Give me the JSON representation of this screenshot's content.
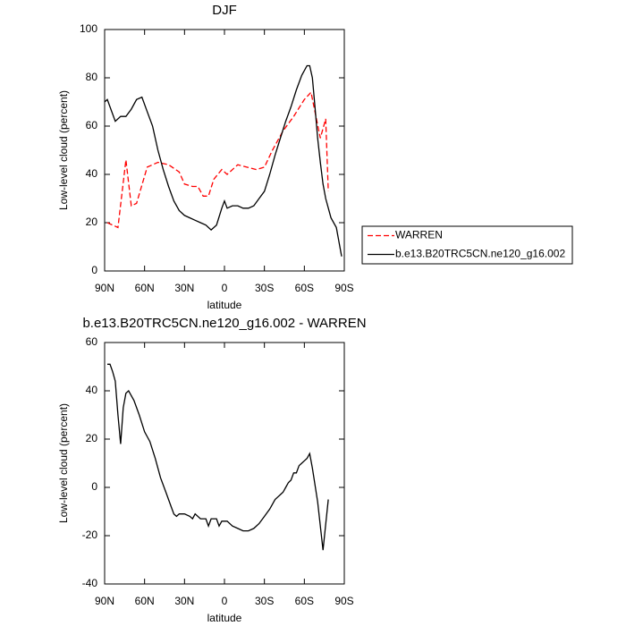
{
  "chart_data": [
    {
      "type": "line",
      "title": "DJF",
      "xlabel": "latitude",
      "ylabel": "Low-level cloud (percent)",
      "xlim": [
        90,
        -90
      ],
      "ylim": [
        0,
        100
      ],
      "xticks": [
        {
          "value": 90,
          "label": "90N"
        },
        {
          "value": 60,
          "label": "60N"
        },
        {
          "value": 30,
          "label": "30N"
        },
        0,
        {
          "value": -30,
          "label": "30S"
        },
        {
          "value": -60,
          "label": "60S"
        },
        {
          "value": -90,
          "label": "90S"
        }
      ],
      "yticks": [
        0,
        20,
        40,
        60,
        80,
        100
      ],
      "legend": "right",
      "series": [
        {
          "name": "WARREN",
          "color": "#ff0000",
          "linestyle": "dashed",
          "x": [
            88,
            80,
            74,
            70,
            66,
            58,
            50,
            42,
            34,
            30,
            24,
            20,
            16,
            12,
            8,
            2,
            -2,
            -10,
            -24,
            -30,
            -36,
            -44,
            -52,
            -60,
            -65,
            -72,
            -76,
            -78
          ],
          "values": [
            20,
            18,
            46,
            27,
            28,
            43,
            45,
            44,
            41,
            36,
            35,
            35,
            31,
            31,
            38,
            42,
            40,
            44,
            42,
            43,
            50,
            58,
            64,
            71,
            74,
            55,
            63,
            33
          ]
        },
        {
          "name": "b.e13.B20TRC5CN.ne120_g16.002",
          "color": "#000000",
          "linestyle": "solid",
          "x": [
            90,
            88,
            82,
            78,
            74,
            70,
            66,
            62,
            58,
            54,
            50,
            46,
            42,
            38,
            34,
            30,
            26,
            22,
            18,
            14,
            10,
            6,
            2,
            0,
            -2,
            -6,
            -10,
            -14,
            -18,
            -22,
            -26,
            -30,
            -34,
            -38,
            -42,
            -46,
            -50,
            -54,
            -58,
            -62,
            -64,
            -66,
            -68,
            -70,
            -72,
            -74,
            -76,
            -80,
            -84,
            -88
          ],
          "values": [
            70,
            71,
            62,
            64,
            64,
            67,
            71,
            72,
            66,
            60,
            50,
            42,
            35,
            29,
            25,
            23,
            22,
            21,
            20,
            19,
            17,
            19,
            26,
            29,
            26,
            27,
            27,
            26,
            26,
            27,
            30,
            33,
            40,
            48,
            55,
            62,
            68,
            75,
            81,
            85,
            85,
            80,
            68,
            55,
            45,
            36,
            30,
            22,
            18,
            6
          ]
        }
      ]
    },
    {
      "type": "line",
      "title": "b.e13.B20TRC5CN.ne120_g16.002 - WARREN",
      "xlabel": "latitude",
      "ylabel": "Low-level cloud (percent)",
      "xlim": [
        90,
        -90
      ],
      "ylim": [
        -40,
        60
      ],
      "xticks": [
        {
          "value": 90,
          "label": "90N"
        },
        {
          "value": 60,
          "label": "60N"
        },
        {
          "value": 30,
          "label": "30N"
        },
        0,
        {
          "value": -30,
          "label": "30S"
        },
        {
          "value": -60,
          "label": "60S"
        },
        {
          "value": -90,
          "label": "90S"
        }
      ],
      "yticks": [
        -40,
        -20,
        0,
        20,
        40,
        60
      ],
      "color": "#000000",
      "x": [
        88,
        86,
        84,
        82,
        80,
        78,
        76,
        74,
        72,
        68,
        64,
        60,
        56,
        52,
        48,
        44,
        40,
        38,
        36,
        34,
        30,
        26,
        24,
        22,
        18,
        14,
        12,
        10,
        6,
        4,
        2,
        -2,
        -6,
        -10,
        -14,
        -18,
        -22,
        -26,
        -30,
        -34,
        -38,
        -40,
        -42,
        -44,
        -46,
        -48,
        -50,
        -52,
        -54,
        -56,
        -58,
        -60,
        -62,
        -64,
        -66,
        -70,
        -74,
        -78
      ],
      "values": [
        51,
        51,
        48,
        44,
        30,
        18,
        33,
        39,
        40,
        36,
        30,
        23,
        19,
        12,
        4,
        -2,
        -8,
        -11,
        -12,
        -11,
        -11,
        -12,
        -13,
        -11,
        -13,
        -13,
        -16,
        -13,
        -13,
        -16,
        -14,
        -14,
        -16,
        -17,
        -18,
        -18,
        -17,
        -15,
        -12,
        -9,
        -5,
        -4,
        -3,
        -2,
        0,
        2,
        3,
        6,
        6,
        9,
        10,
        11,
        12,
        14,
        8,
        -6,
        -26,
        -5
      ]
    }
  ]
}
